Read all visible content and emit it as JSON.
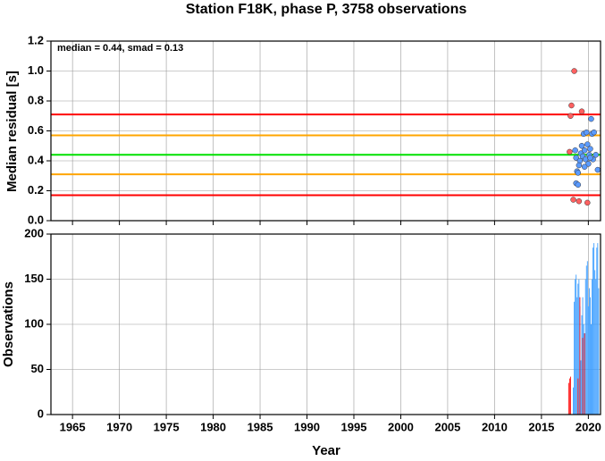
{
  "chart_data": [
    {
      "type": "scatter",
      "title": "Station F18K, phase P, 3758 observations",
      "ylabel": "Median residual [s]",
      "annotation": "median = 0.44, smad = 0.13",
      "xlim": [
        1962.7,
        2021.3
      ],
      "xticks": [
        1965,
        1970,
        1975,
        1980,
        1985,
        1990,
        1995,
        2000,
        2005,
        2010,
        2015,
        2020
      ],
      "ylim": [
        0,
        1.2
      ],
      "yticks": [
        {
          "value": 0,
          "label": "0.0"
        },
        0.2,
        0.4,
        0.6,
        0.8,
        {
          "value": 1,
          "label": "1.0"
        },
        1.2
      ],
      "grid": true,
      "hlines": [
        {
          "value": 0.71,
          "color": "#ff0000"
        },
        {
          "value": 0.57,
          "color": "#ffa500"
        },
        {
          "value": 0.44,
          "color": "#00e000"
        },
        {
          "value": 0.31,
          "color": "#ffa500"
        },
        {
          "value": 0.17,
          "color": "#ff0000"
        }
      ],
      "series": [
        {
          "color": "#ff6060",
          "x": [
            2018.5,
            2018.2,
            2018.1,
            2019.3,
            2018.0,
            2018.4,
            2019.0,
            2019.9
          ],
          "values": [
            1.0,
            0.77,
            0.7,
            0.73,
            0.46,
            0.14,
            0.13,
            0.12
          ]
        },
        {
          "color": "#5b9bff",
          "x": [
            2018.6,
            2018.7,
            2018.8,
            2018.9,
            2018.7,
            2018.9,
            2019.1,
            2019.2,
            2019.3,
            2019.4,
            2019.5,
            2019.6,
            2019.7,
            2019.8,
            2019.9,
            2020.0,
            2020.1,
            2020.2,
            2020.3,
            2020.4,
            2020.5,
            2020.6,
            2020.8,
            2021.0,
            2019.0,
            2019.6,
            2020.2
          ],
          "values": [
            0.47,
            0.42,
            0.33,
            0.32,
            0.25,
            0.24,
            0.4,
            0.45,
            0.5,
            0.43,
            0.58,
            0.47,
            0.41,
            0.59,
            0.51,
            0.38,
            0.44,
            0.48,
            0.68,
            0.58,
            0.41,
            0.59,
            0.44,
            0.34,
            0.37,
            0.36,
            0.42
          ]
        }
      ]
    },
    {
      "type": "bar",
      "xlabel": "Year",
      "ylabel": "Observations",
      "xlim": [
        1962.7,
        2021.3
      ],
      "xticks": [
        1965,
        1970,
        1975,
        1980,
        1985,
        1990,
        1995,
        2000,
        2005,
        2010,
        2015,
        2020
      ],
      "ylim": [
        0,
        200
      ],
      "yticks": [
        0,
        50,
        100,
        150,
        200
      ],
      "grid": true,
      "bar_width": 0.08,
      "series": [
        {
          "color": "#3399ff",
          "x": [
            2018.4,
            2018.5,
            2018.6,
            2018.7,
            2018.8,
            2018.9,
            2019.0,
            2019.1,
            2019.2,
            2019.3,
            2019.4,
            2019.5,
            2019.6,
            2019.7,
            2019.8,
            2019.9,
            2020.0,
            2020.1,
            2020.2,
            2020.3,
            2020.4,
            2020.5,
            2020.6,
            2020.7,
            2020.8,
            2020.9,
            2021.0,
            2021.1
          ],
          "values": [
            30,
            125,
            150,
            155,
            130,
            145,
            150,
            120,
            60,
            110,
            130,
            100,
            90,
            150,
            165,
            170,
            120,
            140,
            130,
            100,
            150,
            185,
            190,
            160,
            150,
            185,
            190,
            140
          ]
        },
        {
          "color": "#ff0000",
          "x": [
            2017.9,
            2018.0,
            2018.1,
            2018.9,
            2019.1,
            2019.4,
            2019.6
          ],
          "values": [
            35,
            40,
            42,
            40,
            130,
            85,
            90
          ]
        }
      ]
    }
  ]
}
